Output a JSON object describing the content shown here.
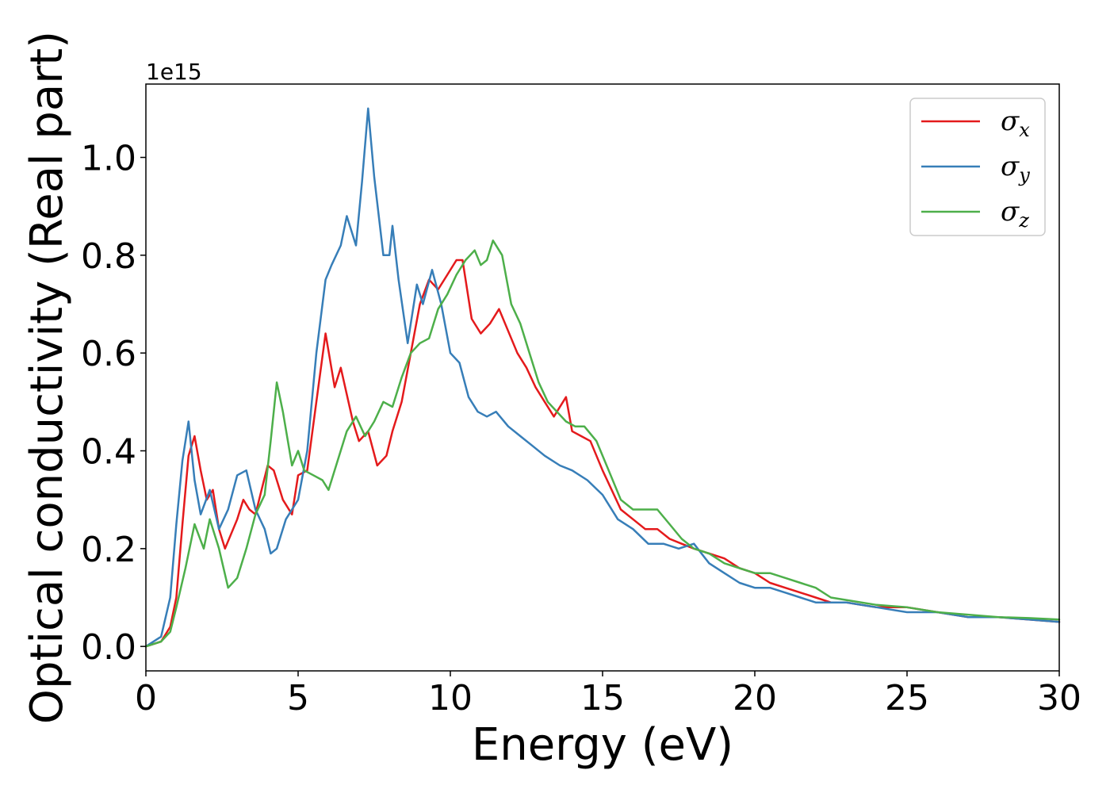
{
  "chart_data": {
    "type": "line",
    "title": "",
    "xlabel": "Energy (eV)",
    "ylabel": "Optical conductivity (Real part)",
    "y_offset_label": "1e15",
    "xlim": [
      0,
      30
    ],
    "ylim": [
      -0.05,
      1.15
    ],
    "x_ticks": [
      0,
      5,
      10,
      15,
      20,
      25,
      30
    ],
    "x_tick_labels": [
      "0",
      "5",
      "10",
      "15",
      "20",
      "25",
      "30"
    ],
    "y_ticks": [
      0.0,
      0.2,
      0.4,
      0.6,
      0.8,
      1.0
    ],
    "y_tick_labels": [
      "0.0",
      "0.2",
      "0.4",
      "0.6",
      "0.8",
      "1.0"
    ],
    "grid": false,
    "legend": "top-right",
    "series": [
      {
        "name": "σ",
        "subscript": "x",
        "color": "#e41a1c",
        "x": [
          0,
          0.5,
          0.8,
          1.0,
          1.2,
          1.4,
          1.6,
          1.8,
          2.0,
          2.2,
          2.4,
          2.6,
          2.8,
          3.0,
          3.2,
          3.4,
          3.6,
          3.8,
          4.0,
          4.2,
          4.5,
          4.8,
          5.0,
          5.3,
          5.6,
          5.9,
          6.2,
          6.4,
          6.8,
          7.0,
          7.3,
          7.6,
          7.9,
          8.1,
          8.4,
          8.7,
          9.0,
          9.3,
          9.6,
          9.9,
          10.2,
          10.4,
          10.7,
          11.0,
          11.3,
          11.6,
          11.8,
          12.2,
          12.5,
          12.8,
          13.1,
          13.4,
          13.8,
          14.0,
          14.3,
          14.6,
          15.0,
          15.3,
          15.6,
          16.0,
          16.4,
          16.8,
          17.2,
          17.6,
          18.0,
          18.5,
          19.0,
          19.5,
          20.0,
          20.5,
          21.0,
          21.5,
          22.0,
          22.5,
          23.0,
          24.0,
          25.0,
          26.0,
          27.0,
          28.0,
          29.0,
          30.0
        ],
        "values": [
          0.0,
          0.01,
          0.04,
          0.1,
          0.25,
          0.39,
          0.43,
          0.36,
          0.3,
          0.32,
          0.24,
          0.2,
          0.23,
          0.26,
          0.3,
          0.28,
          0.27,
          0.32,
          0.37,
          0.36,
          0.3,
          0.27,
          0.35,
          0.36,
          0.5,
          0.64,
          0.53,
          0.57,
          0.46,
          0.42,
          0.44,
          0.37,
          0.39,
          0.44,
          0.5,
          0.6,
          0.7,
          0.75,
          0.73,
          0.76,
          0.79,
          0.79,
          0.67,
          0.64,
          0.66,
          0.69,
          0.66,
          0.6,
          0.57,
          0.53,
          0.5,
          0.47,
          0.51,
          0.44,
          0.43,
          0.42,
          0.36,
          0.32,
          0.28,
          0.26,
          0.24,
          0.24,
          0.22,
          0.21,
          0.2,
          0.19,
          0.18,
          0.16,
          0.15,
          0.13,
          0.12,
          0.11,
          0.1,
          0.09,
          0.09,
          0.08,
          0.08,
          0.07,
          0.06,
          0.06,
          0.055,
          0.05
        ]
      },
      {
        "name": "σ",
        "subscript": "y",
        "color": "#377eb8",
        "x": [
          0,
          0.5,
          0.8,
          1.0,
          1.2,
          1.4,
          1.6,
          1.8,
          2.1,
          2.4,
          2.7,
          3.0,
          3.3,
          3.6,
          3.9,
          4.1,
          4.3,
          4.6,
          5.0,
          5.3,
          5.6,
          5.9,
          6.1,
          6.4,
          6.6,
          6.9,
          7.1,
          7.3,
          7.5,
          7.8,
          8.0,
          8.1,
          8.3,
          8.6,
          8.9,
          9.1,
          9.4,
          9.7,
          10.0,
          10.3,
          10.6,
          10.9,
          11.2,
          11.5,
          11.9,
          12.3,
          12.7,
          13.1,
          13.6,
          14.0,
          14.5,
          15.0,
          15.5,
          16.0,
          16.5,
          17.0,
          17.5,
          18.0,
          18.5,
          19.0,
          19.5,
          20.0,
          20.5,
          21.0,
          21.5,
          22.0,
          23.0,
          24.0,
          25.0,
          26.0,
          27.0,
          28.0,
          29.0,
          30.0
        ],
        "values": [
          0.0,
          0.02,
          0.1,
          0.25,
          0.38,
          0.46,
          0.34,
          0.27,
          0.32,
          0.24,
          0.28,
          0.35,
          0.36,
          0.28,
          0.24,
          0.19,
          0.2,
          0.26,
          0.3,
          0.4,
          0.6,
          0.75,
          0.78,
          0.82,
          0.88,
          0.82,
          0.95,
          1.1,
          0.96,
          0.8,
          0.8,
          0.86,
          0.75,
          0.62,
          0.74,
          0.7,
          0.77,
          0.7,
          0.6,
          0.58,
          0.51,
          0.48,
          0.47,
          0.48,
          0.45,
          0.43,
          0.41,
          0.39,
          0.37,
          0.36,
          0.34,
          0.31,
          0.26,
          0.24,
          0.21,
          0.21,
          0.2,
          0.21,
          0.17,
          0.15,
          0.13,
          0.12,
          0.12,
          0.11,
          0.1,
          0.09,
          0.09,
          0.08,
          0.07,
          0.07,
          0.06,
          0.06,
          0.055,
          0.05
        ]
      },
      {
        "name": "σ",
        "subscript": "z",
        "color": "#4daf4a",
        "x": [
          0,
          0.5,
          0.8,
          1.0,
          1.3,
          1.6,
          1.9,
          2.1,
          2.4,
          2.7,
          3.0,
          3.3,
          3.6,
          3.9,
          4.1,
          4.3,
          4.5,
          4.8,
          5.0,
          5.2,
          5.5,
          5.8,
          6.0,
          6.3,
          6.6,
          6.9,
          7.2,
          7.5,
          7.8,
          8.1,
          8.4,
          8.7,
          9.0,
          9.3,
          9.6,
          9.9,
          10.2,
          10.5,
          10.8,
          11.0,
          11.2,
          11.4,
          11.7,
          12.0,
          12.3,
          12.6,
          12.9,
          13.2,
          13.5,
          13.8,
          14.1,
          14.4,
          14.8,
          15.2,
          15.6,
          16.0,
          16.4,
          16.8,
          17.2,
          17.6,
          18.0,
          18.5,
          19.0,
          19.5,
          20.0,
          20.5,
          21.0,
          21.5,
          22.0,
          22.5,
          23.0,
          24.0,
          25.0,
          26.0,
          27.0,
          28.0,
          29.0,
          30.0
        ],
        "values": [
          0.0,
          0.01,
          0.03,
          0.08,
          0.16,
          0.25,
          0.2,
          0.26,
          0.2,
          0.12,
          0.14,
          0.2,
          0.27,
          0.31,
          0.42,
          0.54,
          0.48,
          0.37,
          0.4,
          0.36,
          0.35,
          0.34,
          0.32,
          0.38,
          0.44,
          0.47,
          0.43,
          0.46,
          0.5,
          0.49,
          0.55,
          0.6,
          0.62,
          0.63,
          0.69,
          0.72,
          0.76,
          0.79,
          0.81,
          0.78,
          0.79,
          0.83,
          0.8,
          0.7,
          0.66,
          0.6,
          0.54,
          0.5,
          0.48,
          0.46,
          0.45,
          0.45,
          0.42,
          0.36,
          0.3,
          0.28,
          0.28,
          0.28,
          0.25,
          0.22,
          0.2,
          0.19,
          0.17,
          0.16,
          0.15,
          0.15,
          0.14,
          0.13,
          0.12,
          0.1,
          0.095,
          0.085,
          0.08,
          0.07,
          0.065,
          0.06,
          0.058,
          0.055
        ]
      }
    ]
  }
}
